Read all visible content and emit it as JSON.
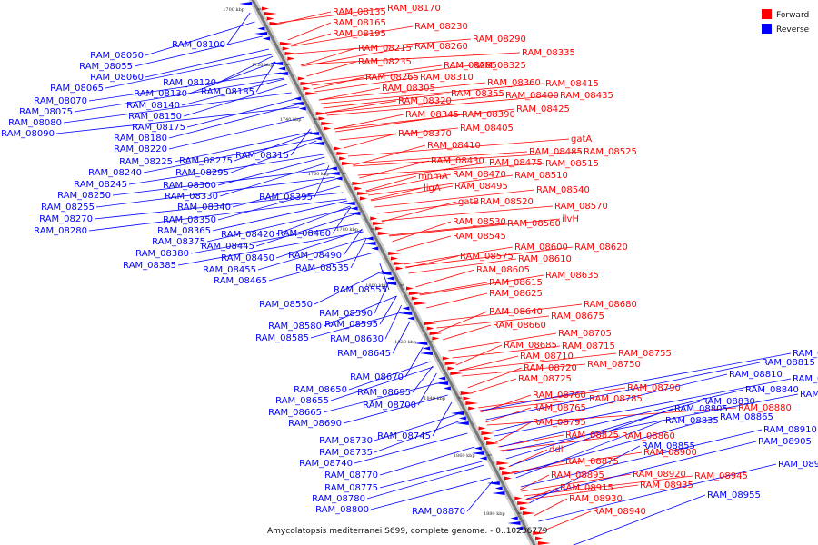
{
  "caption": "Amycolatopsis mediterranei S699, complete genome. - 0..10236779",
  "legend": {
    "items": [
      {
        "label": "Forward",
        "color": "#ff0000"
      },
      {
        "label": "Reverse",
        "color": "#0000ff"
      }
    ]
  },
  "strand_colors": {
    "forward": "#ff0000",
    "reverse": "#0000ff",
    "backbone": "#808080"
  },
  "kbp_ticks": [
    "1700 kbp",
    "1720 kbp",
    "1740 kbp",
    "1760 kbp",
    "1780 kbp",
    "1800 kbp",
    "1820 kbp",
    "1840 kbp",
    "1860 kbp",
    "1880 kbp"
  ],
  "forward_labels": [
    "RAM_08135",
    "RAM_08170",
    "RAM_08165",
    "RAM_08230",
    "RAM_08195",
    "RAM_08290",
    "RAM_08215",
    "RAM_08260",
    "RAM_08335",
    "RAM_08235",
    "RAM_08285",
    "RAM_08325",
    "RAM_08265",
    "RAM_08310",
    "RAM_08360",
    "RAM_08415",
    "RAM_08305",
    "RAM_08355",
    "RAM_08400",
    "RAM_08435",
    "RAM_08320",
    "RAM_08345",
    "RAM_08390",
    "RAM_08425",
    "RAM_08405",
    "RAM_08370",
    "gatA",
    "RAM_08410",
    "RAM_08485",
    "RAM_08525",
    "RAM_08430",
    "RAM_08475",
    "RAM_08515",
    "mnmA",
    "RAM_08470",
    "RAM_08510",
    "ligA",
    "RAM_08495",
    "RAM_08540",
    "gatB",
    "RAM_08520",
    "RAM_08570",
    "ilvH",
    "RAM_08530",
    "RAM_08560",
    "RAM_08545",
    "RAM_08600",
    "RAM_08620",
    "RAM_08575",
    "RAM_08610",
    "RAM_08605",
    "RAM_08635",
    "RAM_08615",
    "RAM_08625",
    "RAM_08680",
    "RAM_08640",
    "RAM_08675",
    "RAM_08660",
    "RAM_08705",
    "RAM_08685",
    "RAM_08715",
    "RAM_08710",
    "RAM_08755",
    "RAM_08720",
    "RAM_08750",
    "RAM_08725",
    "RAM_08760",
    "RAM_08790",
    "RAM_08785",
    "RAM_08765",
    "RAM_08880",
    "RAM_08795",
    "RAM_08825",
    "RAM_08860",
    "ddl",
    "RAM_08900",
    "RAM_08875",
    "RAM_08895",
    "RAM_08920",
    "RAM_08945",
    "RAM_08915",
    "RAM_08935",
    "RAM_08930",
    "RAM_08940"
  ],
  "reverse_labels": [
    "RAM_08050",
    "RAM_08100",
    "RAM_08055",
    "RAM_08060",
    "RAM_08120",
    "RAM_08065",
    "RAM_08130",
    "RAM_08185",
    "RAM_08070",
    "RAM_08140",
    "RAM_08075",
    "RAM_08150",
    "RAM_08080",
    "RAM_08175",
    "RAM_08090",
    "RAM_08180",
    "RAM_08220",
    "RAM_08225",
    "RAM_08275",
    "RAM_08315",
    "RAM_08240",
    "RAM_08295",
    "RAM_08245",
    "RAM_08300",
    "RAM_08250",
    "RAM_08330",
    "RAM_08395",
    "RAM_08255",
    "RAM_08340",
    "RAM_08270",
    "RAM_08350",
    "RAM_08280",
    "RAM_08365",
    "RAM_08420",
    "RAM_08460",
    "RAM_08375",
    "RAM_08445",
    "RAM_08380",
    "RAM_08450",
    "RAM_08490",
    "RAM_08385",
    "RAM_08455",
    "RAM_08535",
    "RAM_08465",
    "RAM_08555",
    "RAM_08550",
    "RAM_08590",
    "RAM_08580",
    "RAM_08595",
    "RAM_08585",
    "RAM_08630",
    "RAM_08645",
    "RAM_08670",
    "RAM_08650",
    "RAM_08695",
    "RAM_08655",
    "RAM_08700",
    "RAM_08665",
    "RAM_08690",
    "RAM_08730",
    "RAM_08745",
    "RAM_08735",
    "RAM_08740",
    "RAM_08770",
    "RAM_08775",
    "RAM_08780",
    "RAM_08800",
    "RAM_08870",
    "RAM_08820",
    "RAM_08815",
    "RAM_08810",
    "RAM_08850",
    "RAM_08840",
    "RAM_08885",
    "RAM_08830",
    "RAM_08805",
    "RAM_08865",
    "RAM_08835",
    "RAM_08910",
    "RAM_08905",
    "RAM_08855",
    "RAM_08950",
    "RAM_08955"
  ]
}
